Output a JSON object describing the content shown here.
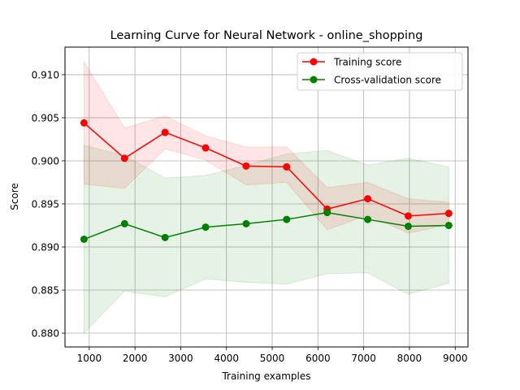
{
  "chart_data": {
    "type": "line",
    "title": "Learning Curve for Neural Network - online_shopping",
    "xlabel": "Training examples",
    "ylabel": "Score",
    "xlim": [
      470,
      9280
    ],
    "ylim": [
      0.8784,
      0.9132
    ],
    "xticks": [
      1000,
      2000,
      3000,
      4000,
      5000,
      6000,
      7000,
      8000,
      9000
    ],
    "xtick_labels": [
      "1000",
      "2000",
      "3000",
      "4000",
      "5000",
      "6000",
      "7000",
      "8000",
      "9000"
    ],
    "yticks": [
      0.88,
      0.885,
      0.89,
      0.895,
      0.9,
      0.905,
      0.91
    ],
    "ytick_labels": [
      "0.880",
      "0.885",
      "0.890",
      "0.895",
      "0.900",
      "0.905",
      "0.910"
    ],
    "grid": true,
    "legend_position": "top-right",
    "x": [
      886,
      1772,
      2658,
      3544,
      4430,
      5316,
      6202,
      7088,
      7974,
      8860
    ],
    "series": [
      {
        "name": "Training score",
        "color": "#ff0000",
        "band_color": "#ff0000",
        "values": [
          0.9044,
          0.9003,
          0.9033,
          0.9015,
          0.8994,
          0.8993,
          0.8944,
          0.8956,
          0.8936,
          0.8939
        ],
        "lower": [
          0.8973,
          0.8968,
          0.9014,
          0.9001,
          0.8972,
          0.8975,
          0.892,
          0.8937,
          0.8916,
          0.8926
        ],
        "upper": [
          0.9115,
          0.9038,
          0.9052,
          0.9029,
          0.9016,
          0.9016,
          0.8969,
          0.8975,
          0.8956,
          0.8952
        ]
      },
      {
        "name": "Cross-validation score",
        "color": "#008000",
        "band_color": "#008000",
        "values": [
          0.8909,
          0.8927,
          0.8911,
          0.8923,
          0.8927,
          0.8932,
          0.894,
          0.8932,
          0.8924,
          0.8925
        ],
        "lower": [
          0.88,
          0.8849,
          0.8842,
          0.8863,
          0.8859,
          0.8857,
          0.8869,
          0.887,
          0.8845,
          0.8858
        ],
        "upper": [
          0.9018,
          0.9006,
          0.898,
          0.8983,
          0.8995,
          0.9008,
          0.9012,
          0.8995,
          0.9003,
          0.8993
        ]
      }
    ]
  }
}
